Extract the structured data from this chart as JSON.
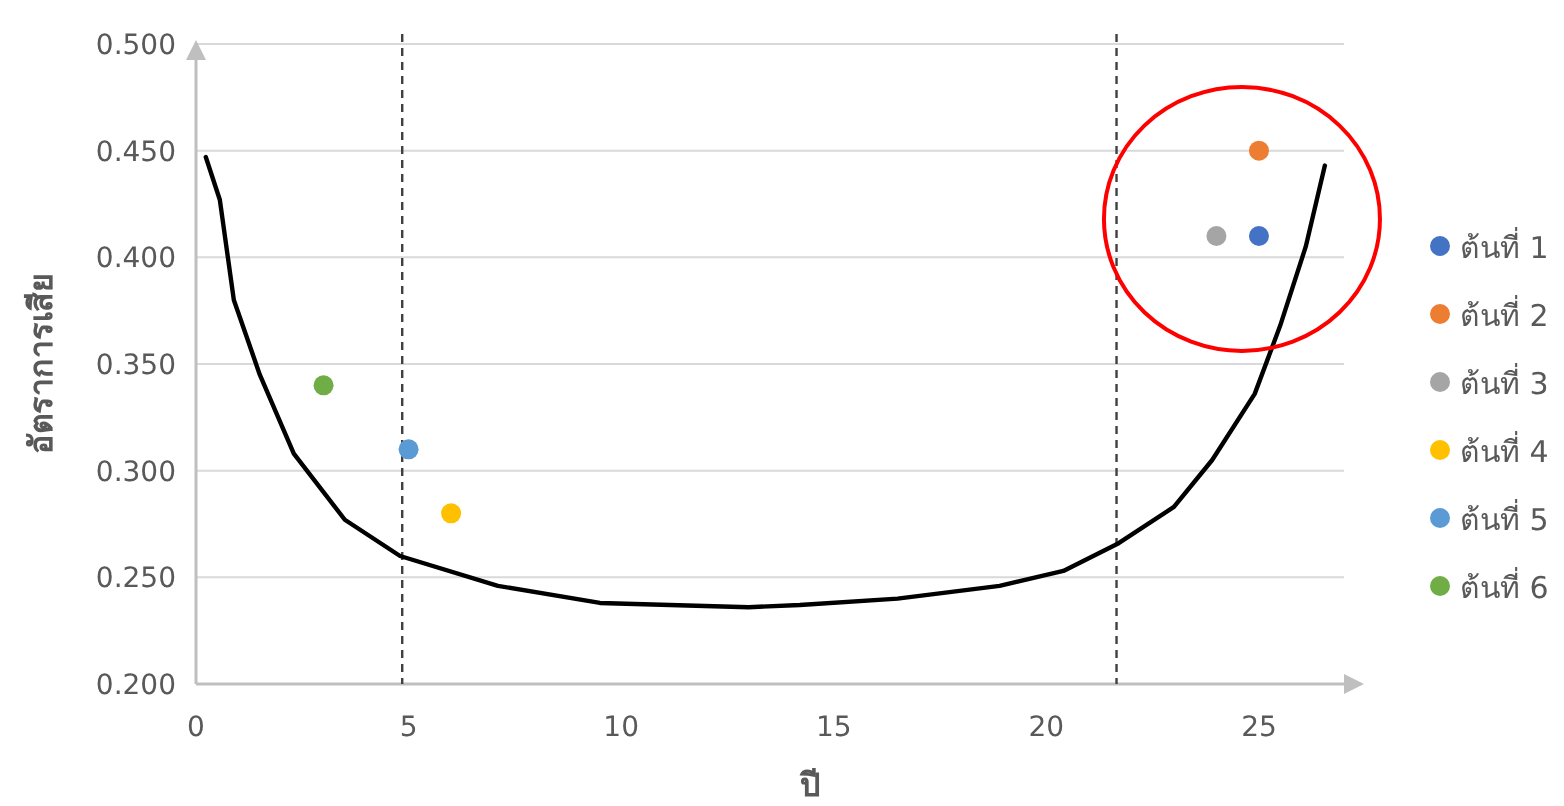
{
  "chart_data": {
    "type": "scatter",
    "xlabel": "ปี",
    "ylabel": "อัตราการเสีย",
    "xlim": [
      0,
      27
    ],
    "ylim": [
      0.2,
      0.5
    ],
    "xticks": [
      0,
      5,
      10,
      15,
      20,
      25
    ],
    "yticks": [
      {
        "value": 0.2,
        "label": "0.200"
      },
      {
        "value": 0.25,
        "label": "0.250"
      },
      {
        "value": 0.3,
        "label": "0.300"
      },
      {
        "value": 0.35,
        "label": "0.350"
      },
      {
        "value": 0.4,
        "label": "0.400"
      },
      {
        "value": 0.45,
        "label": "0.450"
      },
      {
        "value": 0.5,
        "label": "0.500"
      }
    ],
    "grid": "y",
    "legend": "right",
    "marker": "circle",
    "ref_lines": [
      {
        "axis": "x",
        "value": 4.85,
        "line_style": "dashed",
        "color": "#404040"
      },
      {
        "axis": "x",
        "value": 21.65,
        "line_style": "dashed",
        "color": "#404040"
      }
    ],
    "series": [
      {
        "name": "ต้นที่ 1",
        "color": "#4472c4",
        "x": [
          25
        ],
        "values": [
          0.41
        ]
      },
      {
        "name": "ต้นที่ 2",
        "color": "#ed7d31",
        "x": [
          25
        ],
        "values": [
          0.45
        ]
      },
      {
        "name": "ต้นที่ 3",
        "color": "#a5a5a5",
        "x": [
          24
        ],
        "values": [
          0.41
        ]
      },
      {
        "name": "ต้นที่ 4",
        "color": "#ffc000",
        "x": [
          6
        ],
        "values": [
          0.28
        ]
      },
      {
        "name": "ต้นที่ 5",
        "color": "#5b9bd5",
        "x": [
          5
        ],
        "values": [
          0.31
        ]
      },
      {
        "name": "ต้นที่ 6",
        "color": "#70ad47",
        "x": [
          3
        ],
        "values": [
          0.34
        ]
      },
      {
        "type": "line",
        "color": "#000000",
        "marker": "none",
        "x": [
          0.23,
          0.56,
          0.89,
          1.5,
          2.3,
          3.5,
          4.8,
          7.1,
          9.5,
          13,
          14.2,
          16.5,
          18.9,
          20.4,
          21.7,
          23,
          23.9,
          24.9,
          25.5,
          26.1,
          26.55
        ],
        "values": [
          0.447,
          0.427,
          0.38,
          0.345,
          0.308,
          0.277,
          0.26,
          0.246,
          0.238,
          0.236,
          0.237,
          0.24,
          0.246,
          0.253,
          0.266,
          0.283,
          0.305,
          0.336,
          0.368,
          0.405,
          0.443
        ]
      }
    ]
  }
}
